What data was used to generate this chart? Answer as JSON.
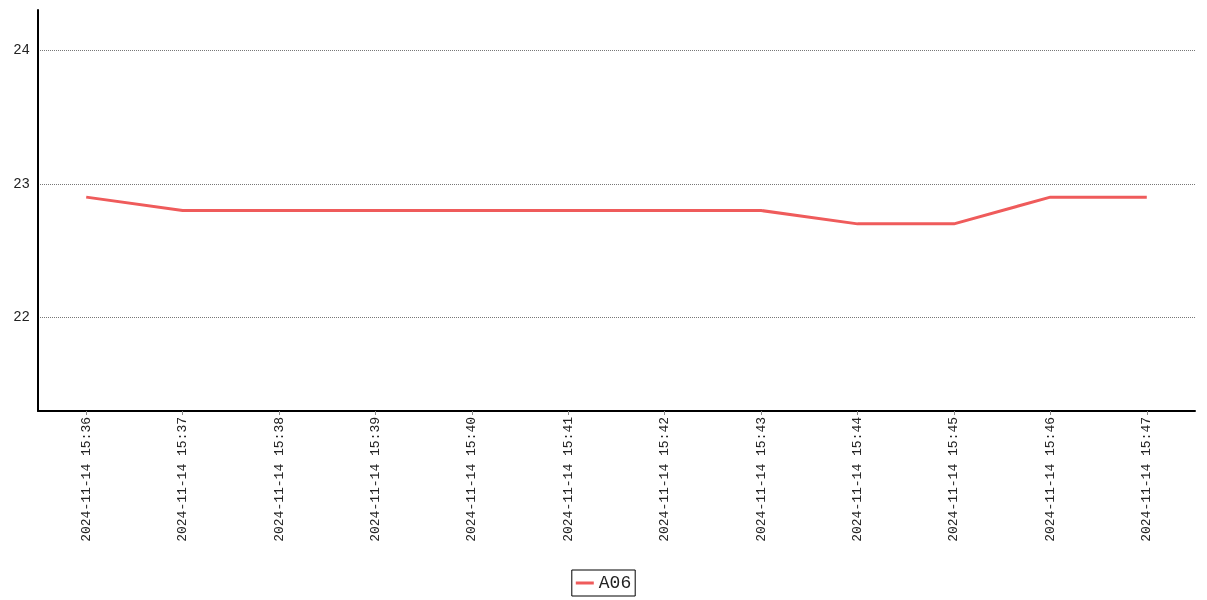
{
  "chart_data": {
    "type": "line",
    "categories": [
      "2024-11-14 15:36",
      "2024-11-14 15:37",
      "2024-11-14 15:38",
      "2024-11-14 15:39",
      "2024-11-14 15:40",
      "2024-11-14 15:41",
      "2024-11-14 15:42",
      "2024-11-14 15:43",
      "2024-11-14 15:44",
      "2024-11-14 15:45",
      "2024-11-14 15:46",
      "2024-11-14 15:47"
    ],
    "series": [
      {
        "name": "A06",
        "color": "#ef5b5b",
        "values": [
          22.9,
          22.8,
          22.8,
          22.8,
          22.8,
          22.8,
          22.8,
          22.8,
          22.7,
          22.7,
          22.9,
          22.9
        ]
      }
    ],
    "ylim": [
      21.3,
      24.3
    ],
    "yticks": [
      22,
      23,
      24
    ],
    "grid": "y",
    "legend": "bottom",
    "marker": "none",
    "line_style": "solid"
  }
}
